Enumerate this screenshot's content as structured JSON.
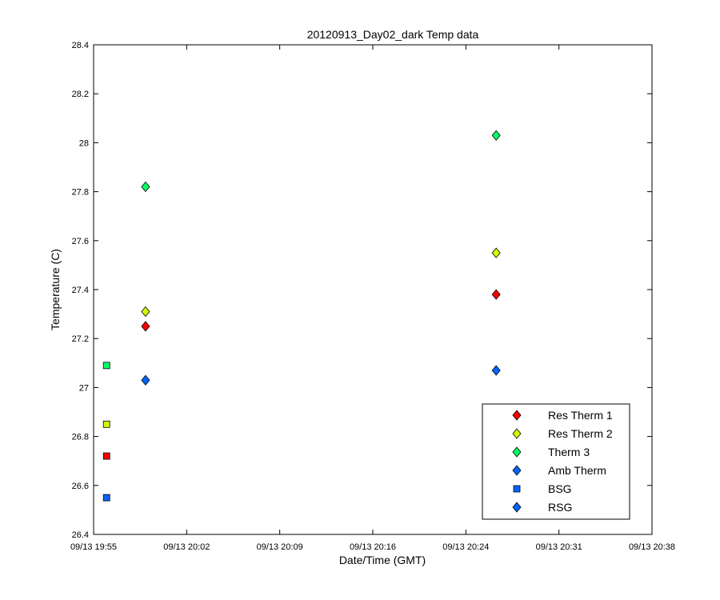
{
  "chart_data": {
    "type": "scatter",
    "title": "20120913_Day02_dark Temp data",
    "xlabel": "Date/Time (GMT)",
    "ylabel": "Temperature (C)",
    "x_ticks": [
      "09/13 19:55",
      "09/13 20:02",
      "09/13 20:09",
      "09/13 20:16",
      "09/13 20:24",
      "09/13 20:31",
      "09/13 20:38"
    ],
    "xlim": [
      "09/13 19:55",
      "09/13 20:38"
    ],
    "y_ticks": [
      "26.4",
      "26.6",
      "26.8",
      "27",
      "27.2",
      "27.4",
      "27.6",
      "27.8",
      "28",
      "28.2",
      "28.4"
    ],
    "ylim": [
      26.4,
      28.4
    ],
    "grid": false,
    "legend_position": "bottom-right",
    "series": [
      {
        "name": "Res Therm 1",
        "marker": "diamond",
        "color": "#ff0000",
        "points": [
          {
            "x": "09/13 19:59",
            "y": 27.25
          },
          {
            "x": "09/13 20:26",
            "y": 27.38
          }
        ]
      },
      {
        "name": "Res Therm 2",
        "marker": "diamond",
        "color": "#ccff00",
        "points": [
          {
            "x": "09/13 19:59",
            "y": 27.31
          },
          {
            "x": "09/13 20:26",
            "y": 27.55
          }
        ]
      },
      {
        "name": "Therm 3",
        "marker": "diamond",
        "color": "#00ff66",
        "points": [
          {
            "x": "09/13 19:59",
            "y": 27.82
          },
          {
            "x": "09/13 20:26",
            "y": 28.03
          }
        ]
      },
      {
        "name": "Amb Therm",
        "marker": "diamond",
        "color": "#0066ff",
        "points": [
          {
            "x": "09/13 19:59",
            "y": 27.03
          },
          {
            "x": "09/13 20:26",
            "y": 27.07
          }
        ]
      },
      {
        "name": "BSG",
        "marker": "square",
        "color": "#0066ff",
        "legend_color": "#0066ff",
        "points": [
          {
            "x": "09/13 19:56",
            "y": 26.55,
            "color": "#0066ff"
          },
          {
            "x": "09/13 19:56",
            "y": 26.72,
            "color": "#ff0000"
          },
          {
            "x": "09/13 19:56",
            "y": 26.85,
            "color": "#ccff00"
          },
          {
            "x": "09/13 19:56",
            "y": 27.09,
            "color": "#00ff66"
          }
        ]
      },
      {
        "name": "RSG",
        "marker": "diamond",
        "color": "#0066ff",
        "points": []
      }
    ]
  }
}
